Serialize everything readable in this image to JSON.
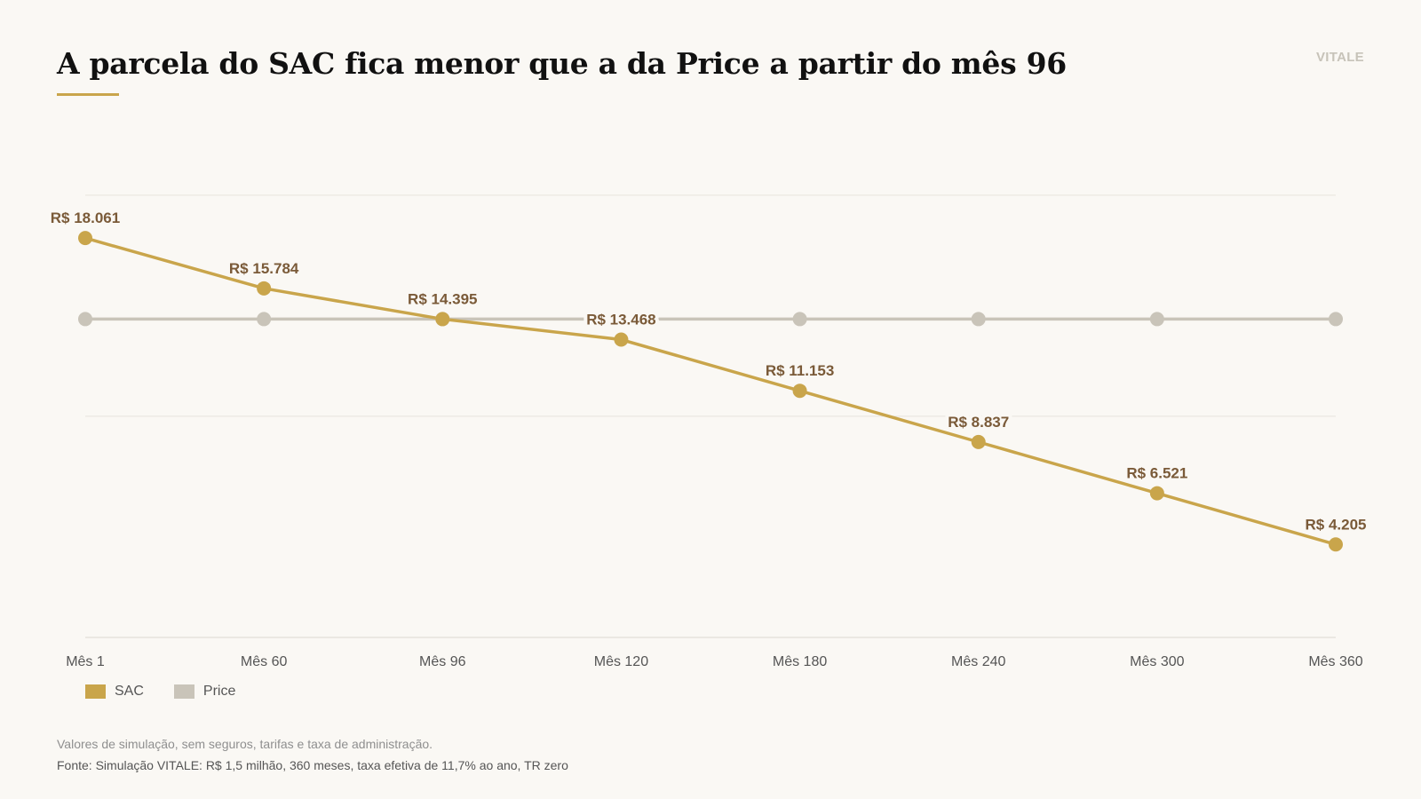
{
  "header": {
    "title": "A parcela do SAC fica menor que a da Price a partir do mês 96",
    "brand": "VITALE"
  },
  "chart_data": {
    "type": "line",
    "title": "A parcela do SAC fica menor que a da Price a partir do mês 96",
    "categories": [
      "Mês 1",
      "Mês 60",
      "Mês 96",
      "Mês 120",
      "Mês 180",
      "Mês 240",
      "Mês 300",
      "Mês 360"
    ],
    "series": [
      {
        "name": "SAC",
        "color": "#c9a54b",
        "values": [
          18061,
          15784,
          14395,
          13468,
          11153,
          8837,
          6521,
          4205
        ],
        "labels": [
          "R$ 18.061",
          "R$ 15.784",
          "R$ 14.395",
          "R$ 13.468",
          "R$ 11.153",
          "R$ 8.837",
          "R$ 6.521",
          "R$ 4.205"
        ]
      },
      {
        "name": "Price",
        "color": "#c9c4b9",
        "values": [
          14395,
          14395,
          14395,
          14395,
          14395,
          14395,
          14395,
          14395
        ]
      }
    ],
    "ylim": [
      0,
      22000
    ],
    "grid": true,
    "legend_position": "bottom-left"
  },
  "footer": {
    "note": "Valores de simulação, sem seguros, tarifas e taxa de administração.",
    "source": "Fonte: Simulação VITALE: R$ 1,5 milhão, 360 meses, taxa efetiva de 11,7% ao ano, TR zero"
  }
}
